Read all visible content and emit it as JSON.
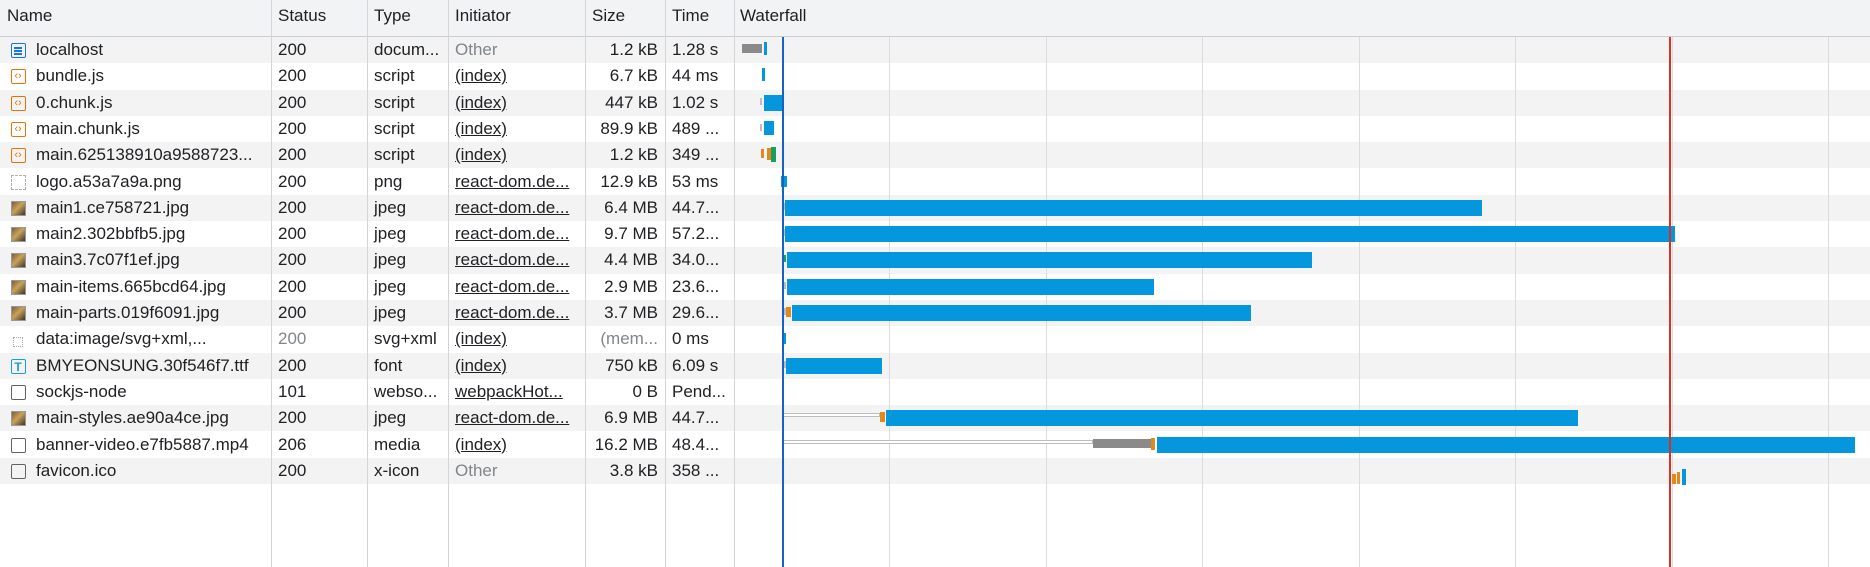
{
  "columns": {
    "name": "Name",
    "status": "Status",
    "type": "Type",
    "initiator": "Initiator",
    "size": "Size",
    "time": "Time",
    "waterfall": "Waterfall"
  },
  "requests": [
    {
      "name": "localhost",
      "status": "200",
      "type": "docum...",
      "initiator": "Other",
      "initiator_link": false,
      "size": "1.2 kB",
      "time": "1.28 s",
      "icon": "document-icon"
    },
    {
      "name": "bundle.js",
      "status": "200",
      "type": "script",
      "initiator": "(index)",
      "initiator_link": true,
      "size": "6.7 kB",
      "time": "44 ms",
      "icon": "script-icon"
    },
    {
      "name": "0.chunk.js",
      "status": "200",
      "type": "script",
      "initiator": "(index)",
      "initiator_link": true,
      "size": "447 kB",
      "time": "1.02 s",
      "icon": "script-icon"
    },
    {
      "name": "main.chunk.js",
      "status": "200",
      "type": "script",
      "initiator": "(index)",
      "initiator_link": true,
      "size": "89.9 kB",
      "time": "489 ...",
      "icon": "script-icon"
    },
    {
      "name": "main.625138910a9588723...",
      "status": "200",
      "type": "script",
      "initiator": "(index)",
      "initiator_link": true,
      "size": "1.2 kB",
      "time": "349 ...",
      "icon": "script-icon"
    },
    {
      "name": "logo.a53a7a9a.png",
      "status": "200",
      "type": "png",
      "initiator": "react-dom.de...",
      "initiator_link": true,
      "size": "12.9 kB",
      "time": "53 ms",
      "icon": "image-icon"
    },
    {
      "name": "main1.ce758721.jpg",
      "status": "200",
      "type": "jpeg",
      "initiator": "react-dom.de...",
      "initiator_link": true,
      "size": "6.4 MB",
      "time": "44.7...",
      "icon": "photo-icon"
    },
    {
      "name": "main2.302bbfb5.jpg",
      "status": "200",
      "type": "jpeg",
      "initiator": "react-dom.de...",
      "initiator_link": true,
      "size": "9.7 MB",
      "time": "57.2...",
      "icon": "photo-icon"
    },
    {
      "name": "main3.7c07f1ef.jpg",
      "status": "200",
      "type": "jpeg",
      "initiator": "react-dom.de...",
      "initiator_link": true,
      "size": "4.4 MB",
      "time": "34.0...",
      "icon": "photo-icon"
    },
    {
      "name": "main-items.665bcd64.jpg",
      "status": "200",
      "type": "jpeg",
      "initiator": "react-dom.de...",
      "initiator_link": true,
      "size": "2.9 MB",
      "time": "23.6...",
      "icon": "photo-icon"
    },
    {
      "name": "main-parts.019f6091.jpg",
      "status": "200",
      "type": "jpeg",
      "initiator": "react-dom.de...",
      "initiator_link": true,
      "size": "3.7 MB",
      "time": "29.6...",
      "icon": "photo-icon"
    },
    {
      "name": "data:image/svg+xml,...",
      "status": "200",
      "type": "svg+xml",
      "initiator": "(index)",
      "initiator_link": true,
      "size": "(mem...",
      "time": "0 ms",
      "icon": "svg-icon",
      "dim": true
    },
    {
      "name": "BMYEONSUNG.30f546f7.ttf",
      "status": "200",
      "type": "font",
      "initiator": "(index)",
      "initiator_link": true,
      "size": "750 kB",
      "time": "6.09 s",
      "icon": "font-icon"
    },
    {
      "name": "sockjs-node",
      "status": "101",
      "type": "webso...",
      "initiator": "webpackHot...",
      "initiator_link": true,
      "size": "0 B",
      "time": "Pend...",
      "icon": "websocket-icon"
    },
    {
      "name": "main-styles.ae90a4ce.jpg",
      "status": "200",
      "type": "jpeg",
      "initiator": "react-dom.de...",
      "initiator_link": true,
      "size": "6.9 MB",
      "time": "44.7...",
      "icon": "photo-icon"
    },
    {
      "name": "banner-video.e7fb5887.mp4",
      "status": "206",
      "type": "media",
      "initiator": "(index)",
      "initiator_link": true,
      "size": "16.2 MB",
      "time": "48.4...",
      "icon": "video-icon"
    },
    {
      "name": "favicon.ico",
      "status": "200",
      "type": "x-icon",
      "initiator": "Other",
      "initiator_link": false,
      "size": "3.8 kB",
      "time": "358 ...",
      "icon": "favicon-icon"
    }
  ],
  "waterfall": {
    "colors": {
      "download": "#0597de",
      "queue": "#8a8a8a",
      "stalled": "#bdbdbd",
      "ssl": "#e08a1e",
      "waiting": "#17a05d",
      "dom_content_loaded": "#1565c0",
      "load": "#d93025"
    }
  }
}
